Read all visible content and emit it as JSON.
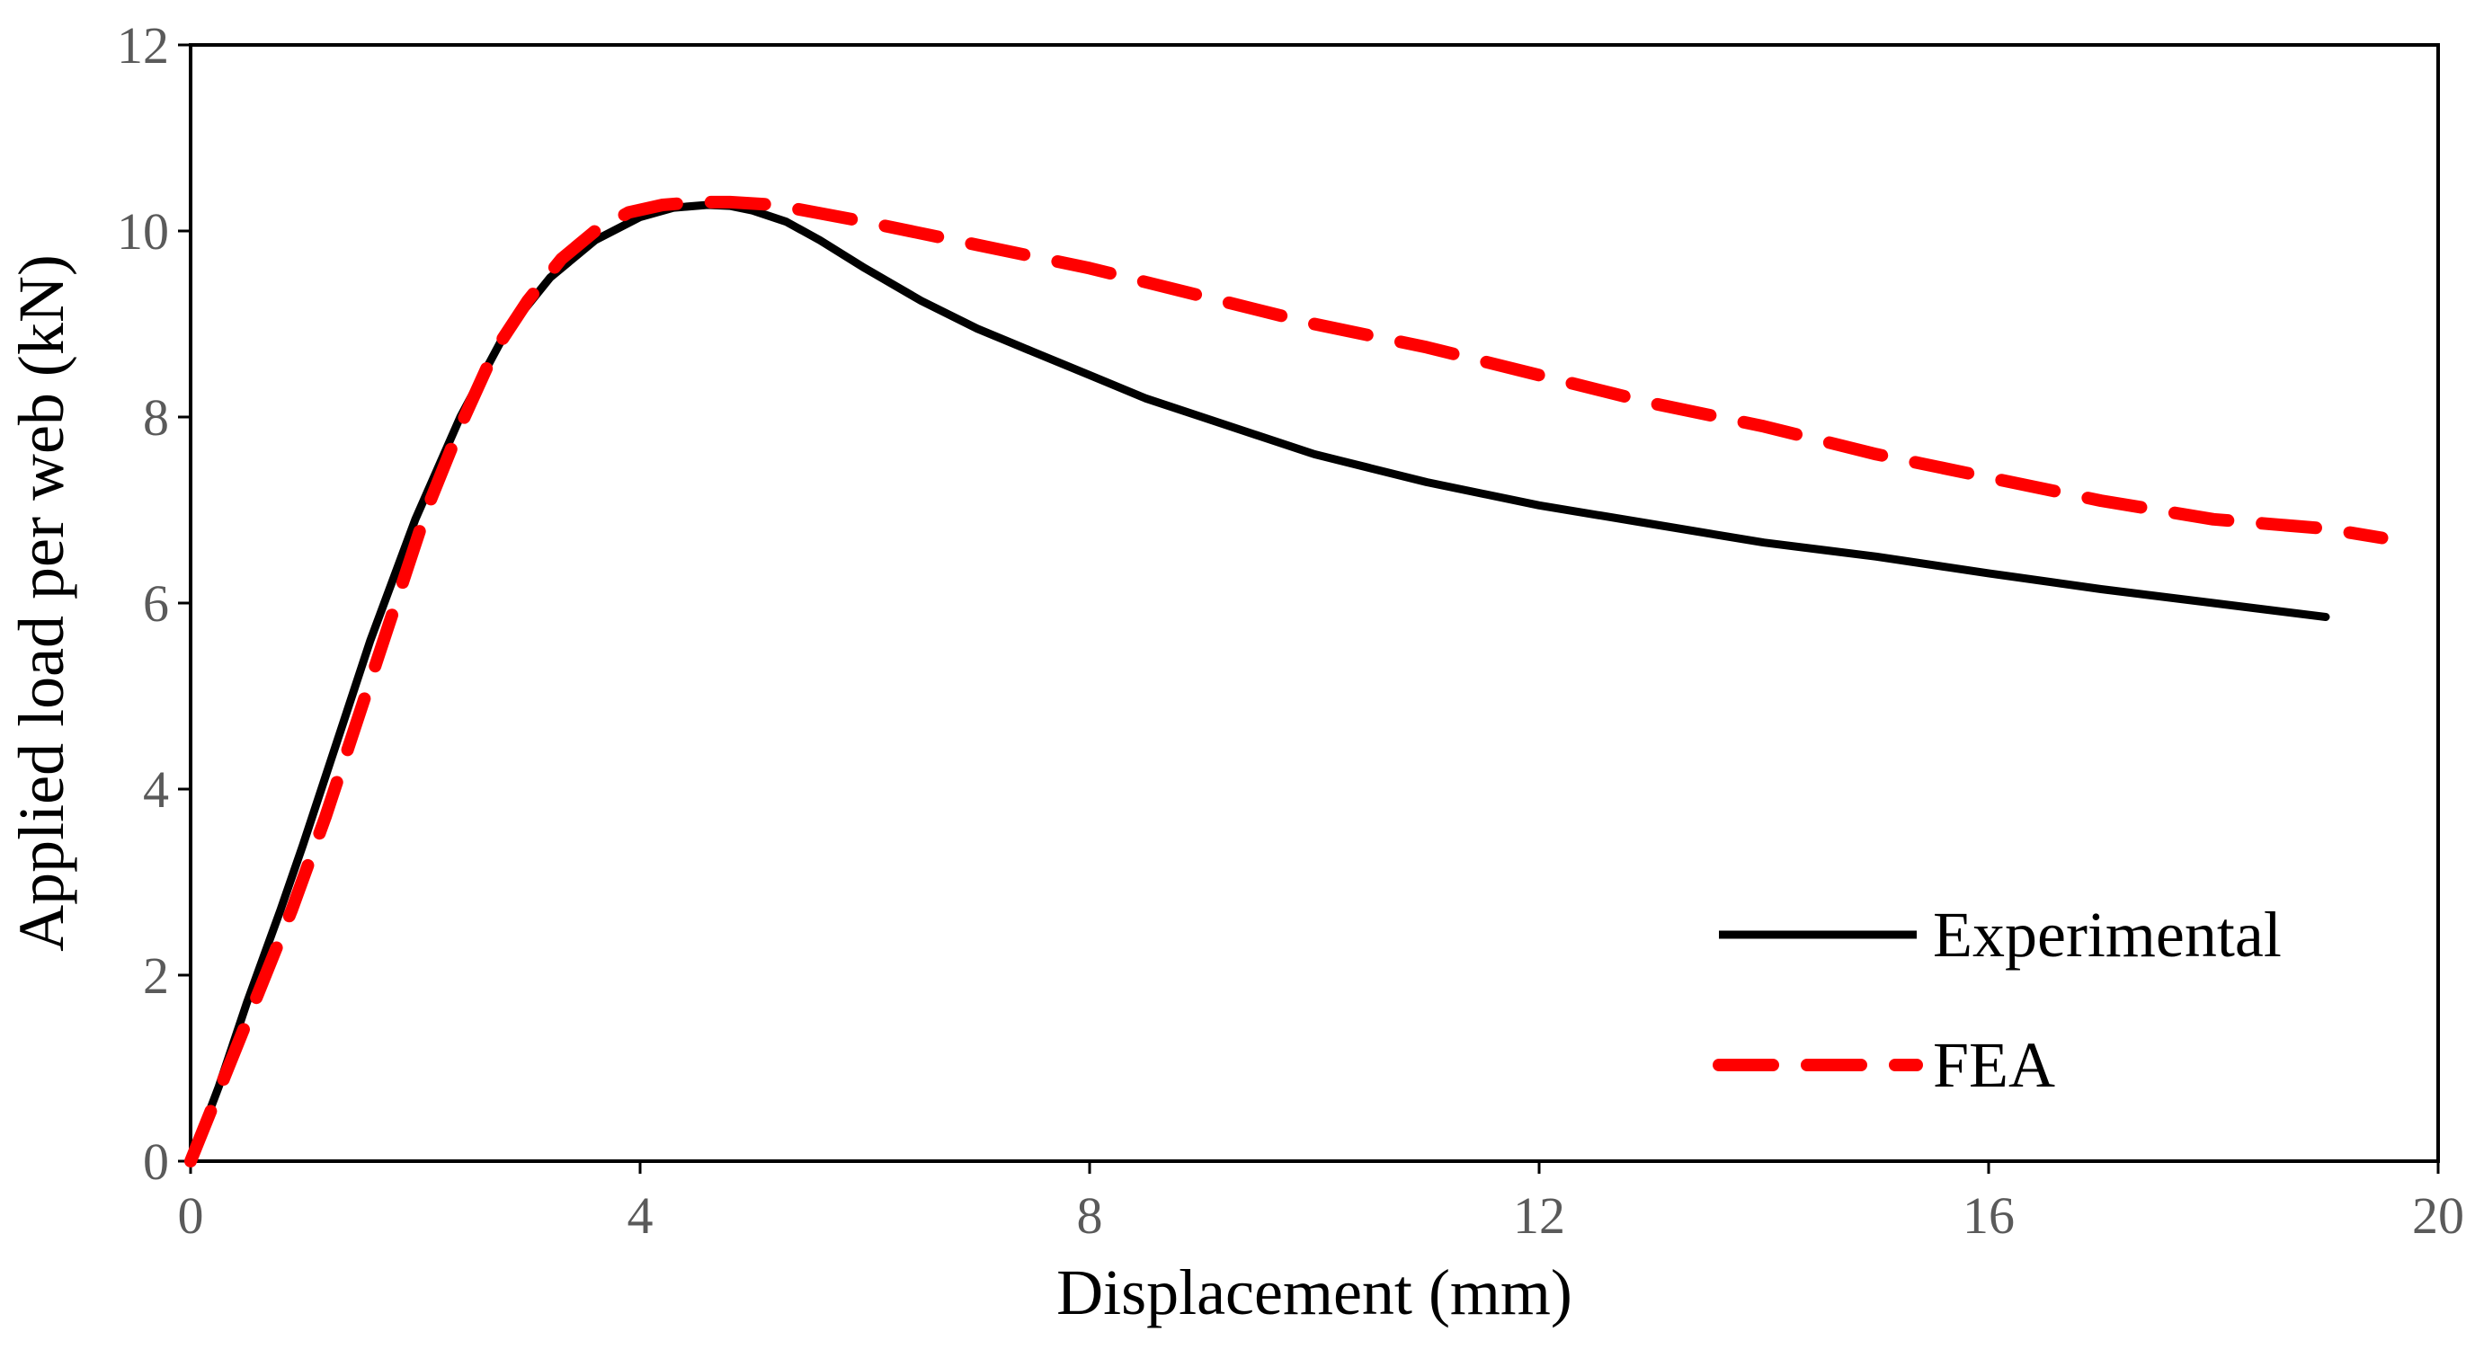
{
  "chart_data": {
    "type": "line",
    "title": "",
    "xlabel": "Displacement (mm)",
    "ylabel": "Applied load per web (kN)",
    "xlim": [
      0,
      20
    ],
    "ylim": [
      0,
      12
    ],
    "xticks": [
      0,
      4,
      8,
      12,
      16,
      20
    ],
    "yticks": [
      0,
      2,
      4,
      6,
      8,
      10,
      12
    ],
    "grid": false,
    "legend_position": "bottom-right",
    "series": [
      {
        "name": "Experimental",
        "color": "#000000",
        "style": "solid",
        "x": [
          0,
          0.25,
          0.5,
          0.8,
          1.0,
          1.3,
          1.6,
          2.0,
          2.4,
          2.8,
          3.2,
          3.6,
          4.0,
          4.3,
          4.6,
          4.8,
          5.0,
          5.3,
          5.6,
          6.0,
          6.5,
          7.0,
          7.5,
          8.0,
          8.5,
          9.0,
          10.0,
          11.0,
          12.0,
          13.0,
          14.0,
          15.0,
          16.0,
          17.0,
          18.0,
          19.0
        ],
        "y": [
          0,
          0.8,
          1.7,
          2.7,
          3.4,
          4.5,
          5.6,
          6.9,
          8.0,
          8.9,
          9.5,
          9.9,
          10.15,
          10.25,
          10.28,
          10.27,
          10.22,
          10.1,
          9.9,
          9.6,
          9.25,
          8.95,
          8.7,
          8.45,
          8.2,
          8.0,
          7.6,
          7.3,
          7.05,
          6.85,
          6.65,
          6.5,
          6.32,
          6.15,
          6.0,
          5.85
        ]
      },
      {
        "name": "FEA",
        "color": "#ff0000",
        "style": "dashed",
        "x": [
          0,
          0.3,
          0.6,
          0.9,
          1.2,
          1.5,
          1.8,
          2.1,
          2.4,
          2.7,
          3.0,
          3.3,
          3.6,
          3.9,
          4.2,
          4.5,
          4.8,
          5.2,
          6.0,
          7.0,
          8.0,
          9.0,
          10.0,
          11.0,
          12.0,
          13.0,
          14.0,
          15.0,
          16.0,
          17.0,
          18.0,
          19.0,
          19.5
        ],
        "y": [
          0,
          0.9,
          1.8,
          2.7,
          3.7,
          4.8,
          5.9,
          7.0,
          7.9,
          8.7,
          9.25,
          9.7,
          10.0,
          10.2,
          10.28,
          10.31,
          10.31,
          10.28,
          10.1,
          9.85,
          9.6,
          9.3,
          9.0,
          8.75,
          8.45,
          8.15,
          7.9,
          7.6,
          7.35,
          7.1,
          6.9,
          6.8,
          6.7
        ]
      }
    ]
  }
}
